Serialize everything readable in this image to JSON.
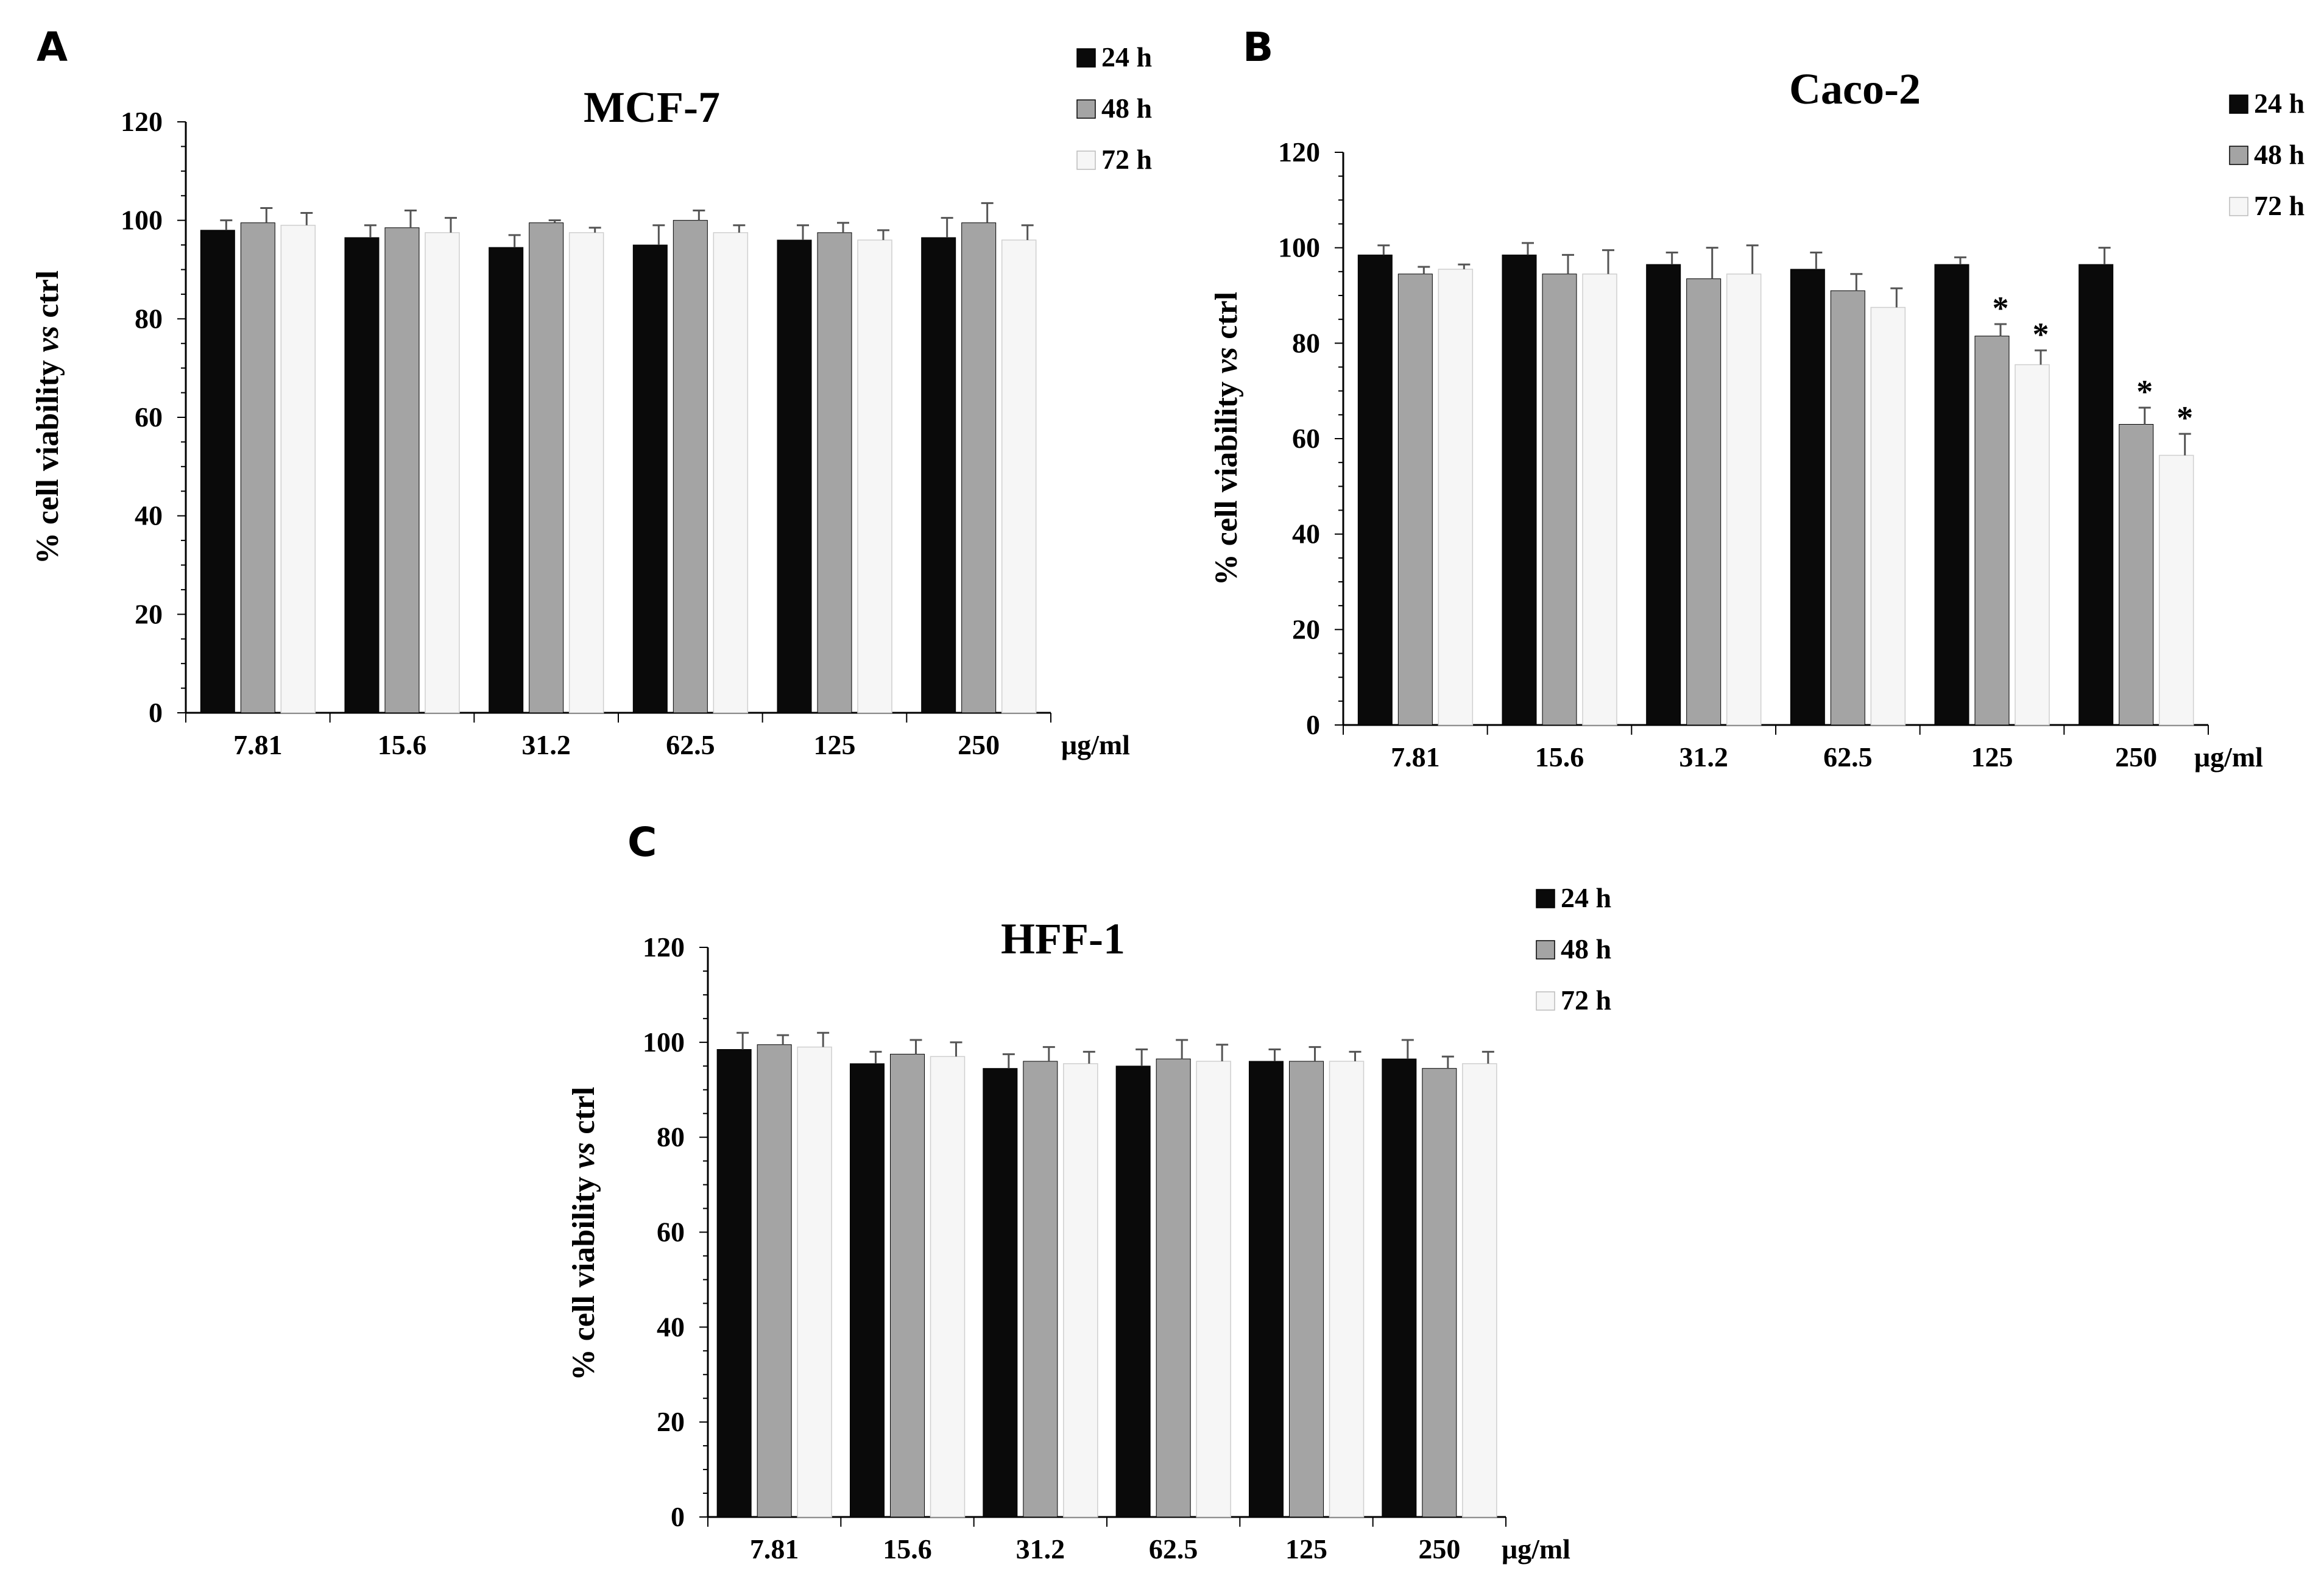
{
  "figure": {
    "panels": [
      {
        "letter": "A"
      },
      {
        "letter": "B"
      },
      {
        "letter": "C"
      }
    ]
  },
  "chart_data": [
    {
      "type": "bar",
      "title": "MCF-7",
      "ylabel": "% cell viability vs ctrl",
      "ylabel_parts": [
        "%  cell viability ",
        "vs",
        " ctrl"
      ],
      "xunit": "μg/ml",
      "ylim": [
        0,
        120
      ],
      "yticks": [
        0,
        20,
        40,
        60,
        80,
        100,
        120
      ],
      "categories": [
        "7.81",
        "15.6",
        "31.2",
        "62.5",
        "125",
        "250"
      ],
      "series": [
        {
          "name": "24 h",
          "color": "#0a0a0a",
          "values": [
            98,
            96.5,
            94.5,
            95,
            96,
            96.5
          ],
          "errors": [
            2,
            2.5,
            2.5,
            4,
            3,
            4
          ]
        },
        {
          "name": "48 h",
          "color": "#a4a4a4",
          "values": [
            99.5,
            98.5,
            99.5,
            100,
            97.5,
            99.5
          ],
          "errors": [
            3,
            3.5,
            0.5,
            2,
            2,
            4
          ]
        },
        {
          "name": "72 h",
          "color": "#f6f6f6",
          "values": [
            99,
            97.5,
            97.5,
            97.5,
            96,
            96
          ],
          "errors": [
            2.5,
            3,
            1,
            1.5,
            2,
            3
          ]
        }
      ],
      "significance": [
        [
          false,
          false,
          false,
          false,
          false,
          false
        ],
        [
          false,
          false,
          false,
          false,
          false,
          false
        ],
        [
          false,
          false,
          false,
          false,
          false,
          false
        ]
      ],
      "sig_symbol": "*"
    },
    {
      "type": "bar",
      "title": "Caco-2",
      "ylabel": "% cell viability vs ctrl",
      "ylabel_parts": [
        "%  cell viability ",
        "vs",
        " ctrl"
      ],
      "xunit": "μg/ml",
      "ylim": [
        0,
        120
      ],
      "yticks": [
        0,
        20,
        40,
        60,
        80,
        100,
        120
      ],
      "categories": [
        "7.81",
        "15.6",
        "31.2",
        "62.5",
        "125",
        "250"
      ],
      "series": [
        {
          "name": "24 h",
          "color": "#0a0a0a",
          "values": [
            98.5,
            98.5,
            96.5,
            95.5,
            96.5,
            96.5
          ],
          "errors": [
            2,
            2.5,
            2.5,
            3.5,
            1.5,
            3.5
          ]
        },
        {
          "name": "48 h",
          "color": "#a4a4a4",
          "values": [
            94.5,
            94.5,
            93.5,
            91,
            81.5,
            63
          ],
          "errors": [
            1.5,
            4,
            6.5,
            3.5,
            2.5,
            3.5
          ]
        },
        {
          "name": "72 h",
          "color": "#f6f6f6",
          "values": [
            95.5,
            94.5,
            94.5,
            87.5,
            75.5,
            56.5
          ],
          "errors": [
            1,
            5,
            6,
            4,
            3,
            4.5
          ]
        }
      ],
      "significance": [
        [
          false,
          false,
          false,
          false,
          false,
          false
        ],
        [
          false,
          false,
          false,
          false,
          true,
          true
        ],
        [
          false,
          false,
          false,
          false,
          true,
          true
        ]
      ],
      "sig_symbol": "*"
    },
    {
      "type": "bar",
      "title": "HFF-1",
      "ylabel": "% cell viability vs ctrl",
      "ylabel_parts": [
        "%  cell viability ",
        "vs",
        " ctrl"
      ],
      "xunit": "μg/ml",
      "ylim": [
        0,
        120
      ],
      "yticks": [
        0,
        20,
        40,
        60,
        80,
        100,
        120
      ],
      "categories": [
        "7.81",
        "15.6",
        "31.2",
        "62.5",
        "125",
        "250"
      ],
      "series": [
        {
          "name": "24 h",
          "color": "#0a0a0a",
          "values": [
            98.5,
            95.5,
            94.5,
            95,
            96,
            96.5
          ],
          "errors": [
            3.5,
            2.5,
            3,
            3.5,
            2.5,
            4
          ]
        },
        {
          "name": "48 h",
          "color": "#a4a4a4",
          "values": [
            99.5,
            97.5,
            96,
            96.5,
            96,
            94.5
          ],
          "errors": [
            2,
            3,
            3,
            4,
            3,
            2.5
          ]
        },
        {
          "name": "72 h",
          "color": "#f6f6f6",
          "values": [
            99,
            97,
            95.5,
            96,
            96,
            95.5
          ],
          "errors": [
            3,
            3,
            2.5,
            3.5,
            2,
            2.5
          ]
        }
      ],
      "significance": [
        [
          false,
          false,
          false,
          false,
          false,
          false
        ],
        [
          false,
          false,
          false,
          false,
          false,
          false
        ],
        [
          false,
          false,
          false,
          false,
          false,
          false
        ]
      ],
      "sig_symbol": "*"
    }
  ]
}
